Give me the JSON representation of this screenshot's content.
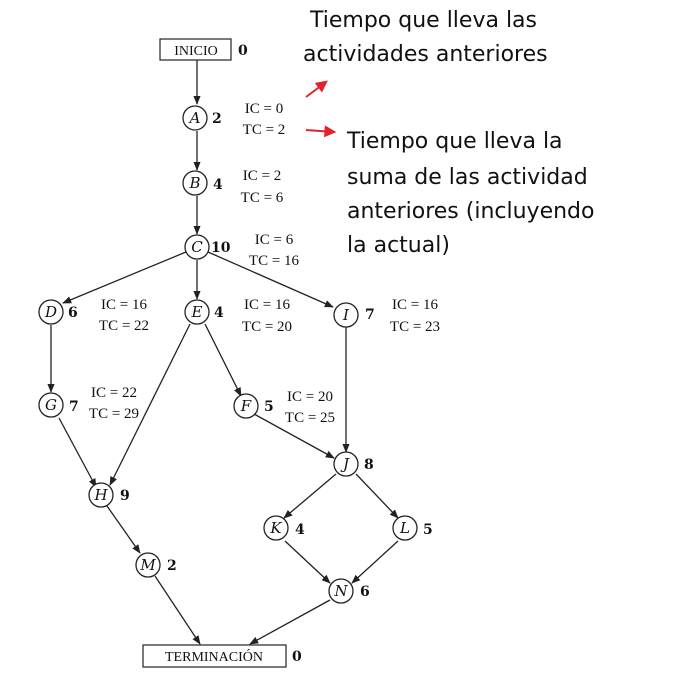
{
  "start": {
    "label": "INICIO",
    "value": "0"
  },
  "end": {
    "label": "TERMINACIÓN",
    "value": "0"
  },
  "nodes": {
    "A": {
      "letter": "A",
      "dur": "2",
      "ic": "IC = 0",
      "tc": "TC = 2"
    },
    "B": {
      "letter": "B",
      "dur": "4",
      "ic": "IC = 2",
      "tc": "TC = 6"
    },
    "C": {
      "letter": "C",
      "dur": "10",
      "ic": "IC = 6",
      "tc": "TC = 16"
    },
    "D": {
      "letter": "D",
      "dur": "6",
      "ic": "IC = 16",
      "tc": "TC = 22"
    },
    "E": {
      "letter": "E",
      "dur": "4",
      "ic": "IC = 16",
      "tc": "TC = 20"
    },
    "I": {
      "letter": "I",
      "dur": "7",
      "ic": "IC = 16",
      "tc": "TC = 23"
    },
    "G": {
      "letter": "G",
      "dur": "7",
      "ic": "IC = 22",
      "tc": "TC = 29"
    },
    "F": {
      "letter": "F",
      "dur": "5",
      "ic": "IC = 20",
      "tc": "TC = 25"
    },
    "J": {
      "letter": "J",
      "dur": "8"
    },
    "H": {
      "letter": "H",
      "dur": "9"
    },
    "K": {
      "letter": "K",
      "dur": "4"
    },
    "L": {
      "letter": "L",
      "dur": "5"
    },
    "M": {
      "letter": "M",
      "dur": "2"
    },
    "N": {
      "letter": "N",
      "dur": "6"
    }
  },
  "notes": {
    "ic_line1": "Tiempo que lleva las",
    "ic_line2": "actividades anteriores",
    "tc_line1": "Tiempo que lleva la",
    "tc_line2": "suma de las actividad",
    "tc_line3": "anteriores (incluyendo",
    "tc_line4": "la actual)"
  },
  "colors": {
    "annotation_arrow": "#e3232c",
    "ink": "#222222"
  }
}
